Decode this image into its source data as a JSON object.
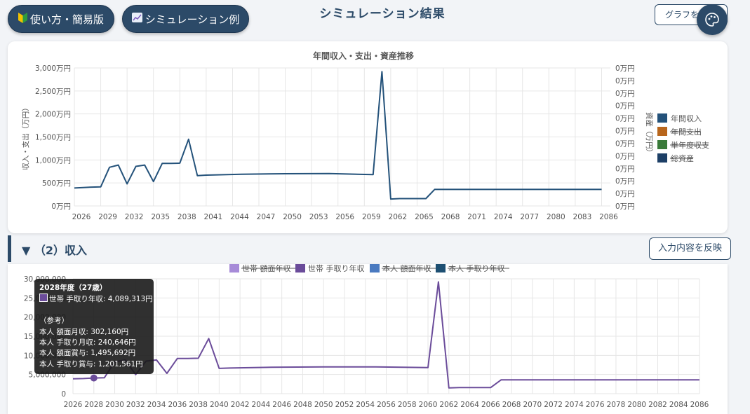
{
  "header": {
    "howto_label": "使い方・簡易版",
    "sim_label": "シミュレーション例",
    "title": "シミュレーション結果",
    "graph_button_label": "グラフを"
  },
  "section2": {
    "title": "▼ （2）収入",
    "apply_label": "入力内容を反映"
  },
  "colors": {
    "primary": "#2c4a68",
    "income": "#24527a",
    "expense": "#b8661c",
    "balance": "#3a7a3a",
    "assets": "#1d3f66",
    "household_gross": "#a78bd8",
    "household_net": "#6b4c9a",
    "self_gross": "#4a7ac0",
    "self_net": "#1d4f72"
  },
  "tooltip": {
    "title": "2028年度（27歳）",
    "line1": "世帯 手取り年収: 4,089,313円",
    "ref": "（参考）",
    "line2": "本人 額面月収: 302,160円",
    "line3": "本人 手取り月収: 240,646円",
    "line4": "本人 額面賞与: 1,495,692円",
    "line5": "本人 手取り賞与: 1,201,561円"
  },
  "chart_data": [
    {
      "type": "line",
      "title": "年間収入・支出・資産推移",
      "ylabel": "収入・支出（万円）",
      "y2label": "資産（万円）",
      "ylim": [
        0,
        3000
      ],
      "yticks": [
        "0万円",
        "500万円",
        "1,000万円",
        "1,500万円",
        "2,000万円",
        "2,500万円",
        "3,000万円"
      ],
      "y2ticks": [
        "0万円",
        "0万円",
        "0万円",
        "0万円",
        "0万円",
        "0万円",
        "0万円",
        "0万円",
        "0万円",
        "0万円",
        "0万円",
        "0万円"
      ],
      "xlim": [
        2026,
        2087
      ],
      "xticks": [
        "2026",
        "2029",
        "2032",
        "2035",
        "2038",
        "2041",
        "2044",
        "2047",
        "2050",
        "2053",
        "2056",
        "2059",
        "2062",
        "2065",
        "2068",
        "2071",
        "2074",
        "2077",
        "2080",
        "2083",
        "2086"
      ],
      "legend_position": "right",
      "legend": [
        {
          "name": "年間収入",
          "color": "#24527a",
          "hidden": false
        },
        {
          "name": "年間支出",
          "color": "#b8661c",
          "hidden": true
        },
        {
          "name": "単年度収支",
          "color": "#3a7a3a",
          "hidden": true
        },
        {
          "name": "総資産",
          "color": "#1d3f66",
          "hidden": true
        }
      ],
      "series": [
        {
          "name": "年間収入",
          "points": [
            [
              2026,
              390
            ],
            [
              2027,
              400
            ],
            [
              2028,
              409
            ],
            [
              2029,
              415
            ],
            [
              2030,
              840
            ],
            [
              2031,
              890
            ],
            [
              2032,
              480
            ],
            [
              2033,
              860
            ],
            [
              2034,
              890
            ],
            [
              2035,
              530
            ],
            [
              2036,
              925
            ],
            [
              2037,
              925
            ],
            [
              2038,
              930
            ],
            [
              2039,
              1450
            ],
            [
              2040,
              660
            ],
            [
              2041,
              670
            ],
            [
              2045,
              690
            ],
            [
              2050,
              700
            ],
            [
              2055,
              705
            ],
            [
              2060,
              680
            ],
            [
              2061,
              2920
            ],
            [
              2062,
              150
            ],
            [
              2063,
              160
            ],
            [
              2066,
              160
            ],
            [
              2067,
              360
            ],
            [
              2086,
              360
            ]
          ]
        }
      ]
    },
    {
      "type": "line",
      "ylim": [
        0,
        30000000
      ],
      "yticks": [
        "0",
        "5,000,000",
        "10,000,000",
        "15,000,000",
        "20,000,000",
        "25,000,000",
        "30,000,000"
      ],
      "xlim": [
        2026,
        2086
      ],
      "xticks": [
        "2026",
        "2028",
        "2030",
        "2032",
        "2034",
        "2036",
        "2038",
        "2040",
        "2042",
        "2044",
        "2046",
        "2048",
        "2050",
        "2052",
        "2054",
        "2056",
        "2058",
        "2060",
        "2062",
        "2064",
        "2066",
        "2068",
        "2070",
        "2072",
        "2074",
        "2076",
        "2078",
        "2080",
        "2082",
        "2084",
        "2086"
      ],
      "legend_position": "top",
      "legend": [
        {
          "name": "世帯 額面年収",
          "color": "#a78bd8",
          "hidden": true
        },
        {
          "name": "世帯 手取り年収",
          "color": "#6b4c9a",
          "hidden": false
        },
        {
          "name": "本人 額面年収",
          "color": "#4a7ac0",
          "hidden": true
        },
        {
          "name": "本人 手取り年収",
          "color": "#1d4f72",
          "hidden": true
        }
      ],
      "series": [
        {
          "name": "世帯 手取り年収",
          "points": [
            [
              2026,
              3900000
            ],
            [
              2027,
              3950000
            ],
            [
              2028,
              4089313
            ],
            [
              2029,
              4150000
            ],
            [
              2030,
              8300000
            ],
            [
              2031,
              8800000
            ],
            [
              2032,
              5000000
            ],
            [
              2033,
              8500000
            ],
            [
              2034,
              8800000
            ],
            [
              2035,
              5300000
            ],
            [
              2036,
              9200000
            ],
            [
              2037,
              9200000
            ],
            [
              2038,
              9250000
            ],
            [
              2039,
              14400000
            ],
            [
              2040,
              6600000
            ],
            [
              2041,
              6700000
            ],
            [
              2045,
              6900000
            ],
            [
              2050,
              7000000
            ],
            [
              2055,
              7000000
            ],
            [
              2060,
              6800000
            ],
            [
              2061,
              29200000
            ],
            [
              2062,
              1500000
            ],
            [
              2063,
              1600000
            ],
            [
              2066,
              1600000
            ],
            [
              2067,
              3600000
            ],
            [
              2086,
              3600000
            ]
          ]
        }
      ],
      "highlight_x": 2028
    }
  ]
}
